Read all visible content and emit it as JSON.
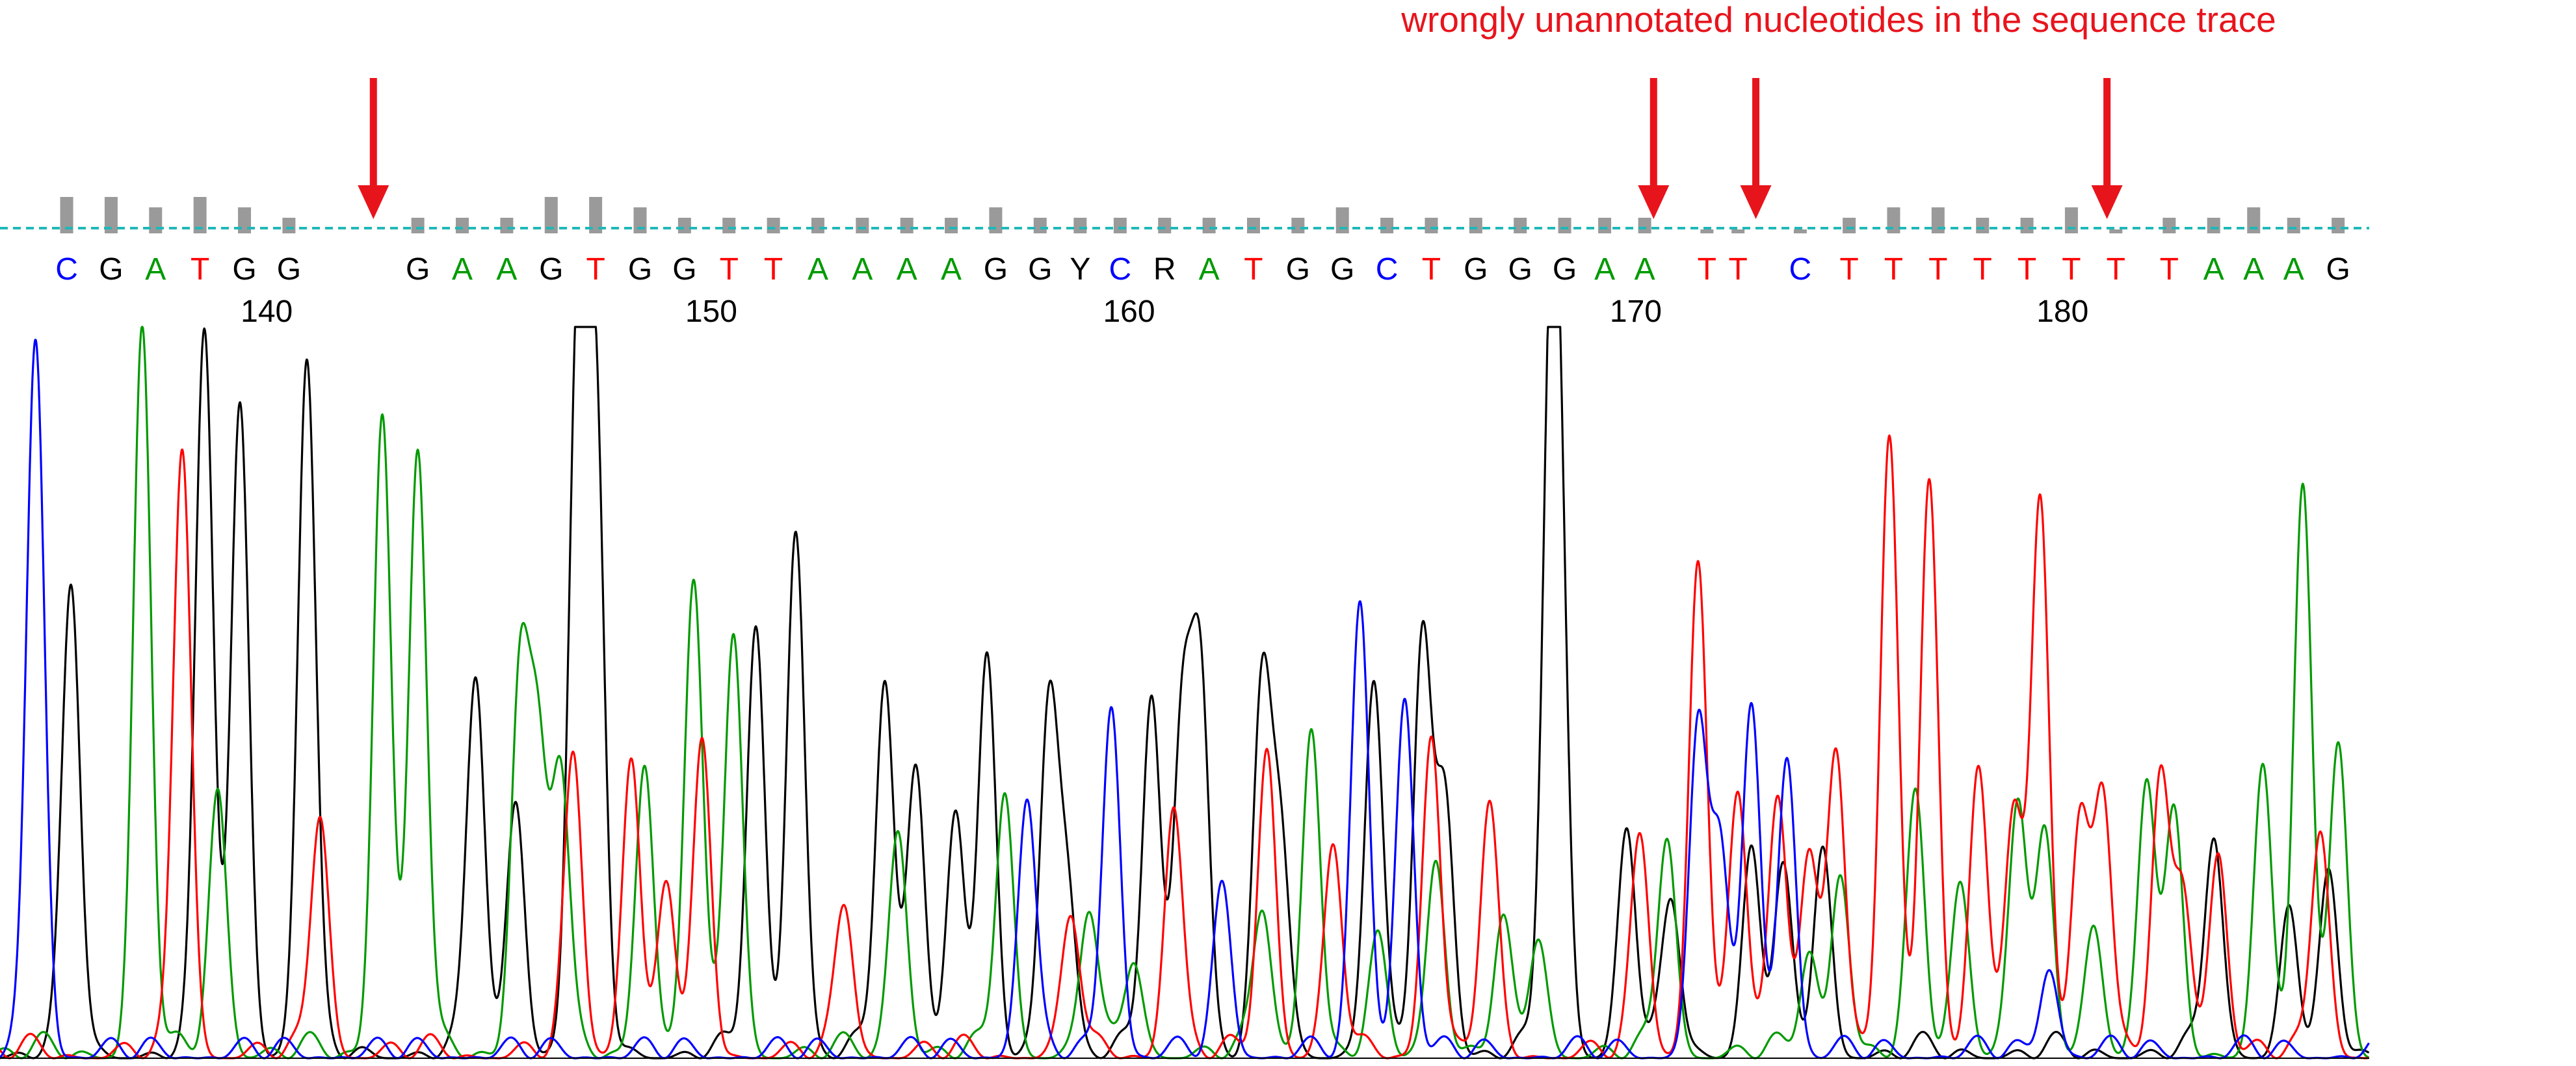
{
  "annotation": {
    "text": "wrongly unannotated nucleotides in the sequence trace",
    "arrow_positions": [
      142.4,
      171.2,
      173.5,
      181.4
    ]
  },
  "base_colors": {
    "A": "#009a00",
    "C": "#0000ff",
    "G": "#000000",
    "T": "#ff0000",
    "other": "#000000"
  },
  "annotation_color": "#e8141c",
  "qv_bar_color": "#9a9a9a",
  "dotted_line_color": "#1fb8b8",
  "position_labels": [
    {
      "text": "140",
      "pos": 140
    },
    {
      "text": "150",
      "pos": 150
    },
    {
      "text": "160",
      "pos": 159.4
    },
    {
      "text": "170",
      "pos": 170.8
    },
    {
      "text": "180",
      "pos": 180.4
    }
  ],
  "bases": [
    {
      "b": "C",
      "pos": 135.5,
      "qv": 3
    },
    {
      "b": "G",
      "pos": 136.5,
      "qv": 3
    },
    {
      "b": "A",
      "pos": 137.5,
      "qv": 2
    },
    {
      "b": "T",
      "pos": 138.5,
      "qv": 3
    },
    {
      "b": "G",
      "pos": 139.5,
      "qv": 2
    },
    {
      "b": "G",
      "pos": 140.5,
      "qv": 1
    },
    {
      "b": "G",
      "pos": 143.4,
      "qv": 1
    },
    {
      "b": "A",
      "pos": 144.4,
      "qv": 1
    },
    {
      "b": "A",
      "pos": 145.4,
      "qv": 1
    },
    {
      "b": "G",
      "pos": 146.4,
      "qv": 3
    },
    {
      "b": "T",
      "pos": 147.4,
      "qv": 3
    },
    {
      "b": "G",
      "pos": 148.4,
      "qv": 2
    },
    {
      "b": "G",
      "pos": 149.4,
      "qv": 1
    },
    {
      "b": "T",
      "pos": 150.4,
      "qv": 1
    },
    {
      "b": "T",
      "pos": 151.4,
      "qv": 1
    },
    {
      "b": "A",
      "pos": 152.4,
      "qv": 1
    },
    {
      "b": "A",
      "pos": 153.4,
      "qv": 1
    },
    {
      "b": "A",
      "pos": 154.4,
      "qv": 1
    },
    {
      "b": "A",
      "pos": 155.4,
      "qv": 1
    },
    {
      "b": "G",
      "pos": 156.4,
      "qv": 2
    },
    {
      "b": "G",
      "pos": 157.4,
      "qv": 1
    },
    {
      "b": "Y",
      "pos": 158.3,
      "qv": 1
    },
    {
      "b": "C",
      "pos": 159.2,
      "qv": 1
    },
    {
      "b": "R",
      "pos": 160.2,
      "qv": 1
    },
    {
      "b": "A",
      "pos": 161.2,
      "qv": 1
    },
    {
      "b": "T",
      "pos": 162.2,
      "qv": 1
    },
    {
      "b": "G",
      "pos": 163.2,
      "qv": 1
    },
    {
      "b": "G",
      "pos": 164.2,
      "qv": 2
    },
    {
      "b": "C",
      "pos": 165.2,
      "qv": 1
    },
    {
      "b": "T",
      "pos": 166.2,
      "qv": 1
    },
    {
      "b": "G",
      "pos": 167.2,
      "qv": 1
    },
    {
      "b": "G",
      "pos": 168.2,
      "qv": 1
    },
    {
      "b": "G",
      "pos": 169.2,
      "qv": 1
    },
    {
      "b": "A",
      "pos": 170.1,
      "qv": 1
    },
    {
      "b": "A",
      "pos": 171.0,
      "qv": 1
    },
    {
      "b": "T",
      "pos": 172.4,
      "qv": 0
    },
    {
      "b": "T",
      "pos": 173.1,
      "qv": 0
    },
    {
      "b": "C",
      "pos": 174.5,
      "qv": 0
    },
    {
      "b": "T",
      "pos": 175.6,
      "qv": 1
    },
    {
      "b": "T",
      "pos": 176.6,
      "qv": 2
    },
    {
      "b": "T",
      "pos": 177.6,
      "qv": 2
    },
    {
      "b": "T",
      "pos": 178.6,
      "qv": 1
    },
    {
      "b": "T",
      "pos": 179.6,
      "qv": 1
    },
    {
      "b": "T",
      "pos": 180.6,
      "qv": 2
    },
    {
      "b": "T",
      "pos": 181.6,
      "qv": 0
    },
    {
      "b": "T",
      "pos": 182.8,
      "qv": 1
    },
    {
      "b": "A",
      "pos": 183.8,
      "qv": 1
    },
    {
      "b": "A",
      "pos": 184.7,
      "qv": 2
    },
    {
      "b": "A",
      "pos": 185.6,
      "qv": 1
    },
    {
      "b": "G",
      "pos": 186.6,
      "qv": 1
    }
  ],
  "trace_peaks": {
    "A": [
      [
        137.2,
        0.99
      ],
      [
        138.9,
        0.36
      ],
      [
        142.6,
        0.88
      ],
      [
        143.4,
        0.83
      ],
      [
        145.7,
        0.52
      ],
      [
        146.1,
        0.4
      ],
      [
        146.6,
        0.39
      ],
      [
        148.5,
        0.4
      ],
      [
        149.6,
        0.65
      ],
      [
        150.5,
        0.58
      ],
      [
        154.2,
        0.31
      ],
      [
        156.6,
        0.36
      ],
      [
        158.5,
        0.2
      ],
      [
        159.5,
        0.13
      ],
      [
        162.4,
        0.2
      ],
      [
        163.5,
        0.45
      ],
      [
        165.0,
        0.14
      ],
      [
        166.3,
        0.27
      ],
      [
        167.8,
        0.17
      ],
      [
        168.6,
        0.16
      ],
      [
        171.5,
        0.3
      ],
      [
        174.7,
        0.14
      ],
      [
        175.4,
        0.25
      ],
      [
        177.1,
        0.34
      ],
      [
        178.1,
        0.24
      ],
      [
        179.4,
        0.35
      ],
      [
        180.0,
        0.28
      ],
      [
        181.1,
        0.18
      ],
      [
        182.3,
        0.37
      ],
      [
        182.9,
        0.31
      ],
      [
        184.9,
        0.39
      ],
      [
        185.8,
        0.76
      ],
      [
        186.6,
        0.43
      ]
    ],
    "C": [
      [
        134.8,
        0.98
      ],
      [
        157.1,
        0.35
      ],
      [
        159.0,
        0.48
      ],
      [
        161.5,
        0.22
      ],
      [
        164.6,
        0.61
      ],
      [
        165.6,
        0.49
      ],
      [
        172.2,
        0.45
      ],
      [
        172.7,
        0.28
      ],
      [
        173.4,
        0.46
      ],
      [
        174.2,
        0.41
      ],
      [
        180.1,
        0.12
      ]
    ],
    "G": [
      [
        135.6,
        0.64
      ],
      [
        138.6,
        0.99
      ],
      [
        139.4,
        0.89
      ],
      [
        140.9,
        0.95
      ],
      [
        144.7,
        0.52
      ],
      [
        145.6,
        0.35
      ],
      [
        147.0,
        0.99
      ],
      [
        147.4,
        0.85
      ],
      [
        151.0,
        0.58
      ],
      [
        151.9,
        0.72
      ],
      [
        153.9,
        0.51
      ],
      [
        154.6,
        0.4
      ],
      [
        155.5,
        0.33
      ],
      [
        156.2,
        0.52
      ],
      [
        157.6,
        0.48
      ],
      [
        158.0,
        0.23
      ],
      [
        159.9,
        0.49
      ],
      [
        160.6,
        0.46
      ],
      [
        161.0,
        0.52
      ],
      [
        162.4,
        0.48
      ],
      [
        162.8,
        0.3
      ],
      [
        164.9,
        0.51
      ],
      [
        166.0,
        0.57
      ],
      [
        166.5,
        0.36
      ],
      [
        168.9,
        0.91
      ],
      [
        169.1,
        0.44
      ],
      [
        170.6,
        0.31
      ],
      [
        171.6,
        0.21
      ],
      [
        173.4,
        0.28
      ],
      [
        174.1,
        0.24
      ],
      [
        175.0,
        0.28
      ],
      [
        183.8,
        0.3
      ],
      [
        185.5,
        0.2
      ],
      [
        186.4,
        0.23
      ]
    ],
    "T": [
      [
        138.1,
        0.83
      ],
      [
        141.2,
        0.33
      ],
      [
        146.9,
        0.4
      ],
      [
        148.2,
        0.41
      ],
      [
        149.0,
        0.23
      ],
      [
        149.8,
        0.41
      ],
      [
        153.0,
        0.2
      ],
      [
        158.1,
        0.19
      ],
      [
        160.4,
        0.34
      ],
      [
        162.5,
        0.42
      ],
      [
        164.0,
        0.28
      ],
      [
        166.2,
        0.44
      ],
      [
        167.5,
        0.33
      ],
      [
        170.9,
        0.29
      ],
      [
        172.2,
        0.68
      ],
      [
        173.1,
        0.36
      ],
      [
        174.0,
        0.35
      ],
      [
        174.7,
        0.28
      ],
      [
        175.3,
        0.42
      ],
      [
        176.5,
        0.83
      ],
      [
        177.4,
        0.79
      ],
      [
        178.5,
        0.39
      ],
      [
        179.3,
        0.34
      ],
      [
        179.9,
        0.75
      ],
      [
        180.8,
        0.33
      ],
      [
        181.3,
        0.36
      ],
      [
        182.6,
        0.36
      ],
      [
        183.1,
        0.23
      ],
      [
        183.9,
        0.28
      ],
      [
        186.2,
        0.31
      ]
    ]
  },
  "trace_range": {
    "from": 134.0,
    "to": 187.3
  }
}
